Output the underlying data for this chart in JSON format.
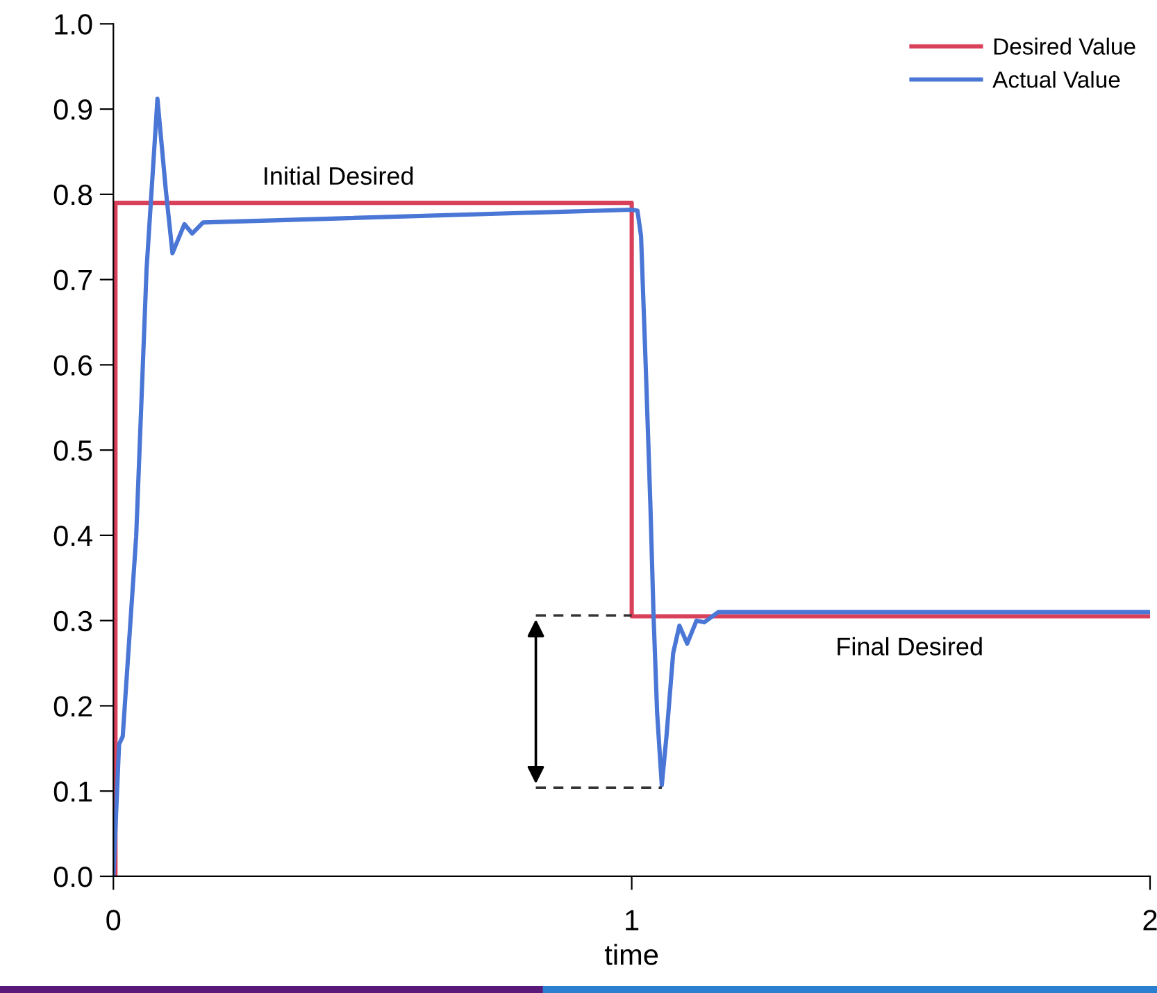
{
  "chart_data": {
    "type": "line",
    "xlabel": "time",
    "xlim": [
      0,
      2
    ],
    "ylim": [
      0,
      1
    ],
    "xticks": [
      0,
      1,
      2
    ],
    "yticks": [
      {
        "value": 0,
        "label": "0.0"
      },
      {
        "value": 0.1,
        "label": "0.1"
      },
      {
        "value": 0.2,
        "label": "0.2"
      },
      {
        "value": 0.3,
        "label": "0.3"
      },
      {
        "value": 0.4,
        "label": "0.4"
      },
      {
        "value": 0.5,
        "label": "0.5"
      },
      {
        "value": 0.6,
        "label": "0.6"
      },
      {
        "value": 0.7,
        "label": "0.7"
      },
      {
        "value": 0.8,
        "label": "0.8"
      },
      {
        "value": 0.9,
        "label": "0.9"
      },
      {
        "value": 1.0,
        "label": "1.0"
      }
    ],
    "grid": false,
    "legend": "top right",
    "marker": "none",
    "series": [
      {
        "name": "Desired Value",
        "color": "#d9415a",
        "x": [
          0,
          0.004,
          1.0,
          1.0,
          2
        ],
        "values": [
          0,
          0.79,
          0.79,
          0.305,
          0.305
        ],
        "type": "step"
      },
      {
        "name": "Actual Value",
        "color": "#4a76d6",
        "x": [
          0,
          0.011,
          0.018,
          0.044,
          0.064,
          0.085,
          0.101,
          0.114,
          0.137,
          0.152,
          0.173,
          1.0,
          1.011,
          1.018,
          1.027,
          1.036,
          1.042,
          1.049,
          1.058,
          1.067,
          1.08,
          1.092,
          1.107,
          1.125,
          1.14,
          1.167,
          2
        ],
        "values": [
          0,
          0.155,
          0.164,
          0.399,
          0.712,
          0.912,
          0.806,
          0.731,
          0.765,
          0.754,
          0.767,
          0.782,
          0.781,
          0.751,
          0.599,
          0.436,
          0.308,
          0.192,
          0.107,
          0.164,
          0.262,
          0.294,
          0.273,
          0.3,
          0.298,
          0.31,
          0.31
        ]
      },
      {
        "color": "#333333",
        "x": [
          0.815,
          1.0
        ],
        "values": [
          0.306,
          0.306
        ],
        "line_style": "dashed"
      },
      {
        "color": "#333333",
        "x": [
          0.815,
          1.058
        ],
        "values": [
          0.104,
          0.104
        ],
        "line_style": "dashed"
      }
    ],
    "annotations": [
      "Initial Desired",
      "Final Desired"
    ]
  }
}
